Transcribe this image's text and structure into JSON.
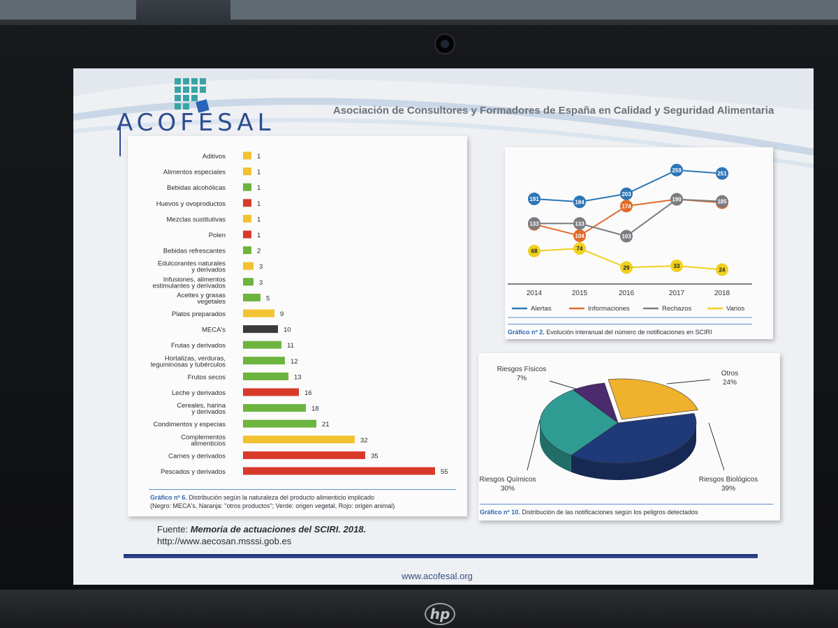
{
  "header": {
    "logo_text": "ACOFESAL",
    "title": "Asociación de Consultores y Formadores de España en Calidad y Seguridad Alimentaria"
  },
  "source": {
    "prefix": "Fuente:",
    "title": "Memoria de actuaciones del SCIRI. 2018.",
    "url": "http://www.aecosan.msssi.gob.es"
  },
  "footer": {
    "url": "www.acofesal.org"
  },
  "laptop": {
    "brand": "hp"
  },
  "colors": {
    "black": "#3a3a3c",
    "orange": "#f2c230",
    "green": "#6db33f",
    "red": "#d83a2a",
    "alertas": "#2e75b6",
    "informaciones": "#e06c2a",
    "rechazos": "#7a7c80",
    "varios": "#f0d020",
    "pie_otros": "#f0b22c",
    "pie_biologicos": "#1f3a78",
    "pie_quimicos": "#2f9c94",
    "pie_fisicos": "#4b2a6e"
  },
  "chart_data": [
    {
      "type": "bar",
      "orientation": "horizontal",
      "caption_label": "Gráfico nº 6.",
      "caption_text": "Distribución según la naturaleza del producto alimenticio implicado",
      "caption_note": "(Negro: MECA's, Naranja: \"otros productos\"; Verde: origen vegetal, Rojo: origen animal)",
      "categories": [
        "Aditivos",
        "Alimentos especiales",
        "Bebidas alcohólicas",
        "Huevos y ovoproductos",
        "Mezclas  sustitutivas",
        "Polen",
        "Bebidas refrescantes",
        "Edulcorantes naturales\ny derivados",
        "Infusiones, alimentos\nestimulantes y derivados",
        "Aceites y grasas\nvegetales",
        "Platos preparados",
        "MECA's",
        "Frutas y derivados",
        "Hortalizas, verduras,\nleguminosas y tubérculos",
        "Frutos secos",
        "Leche y derivados",
        "Cereales, harina\ny derivados",
        "Condimentos y especias",
        "Complementos\nalimenticios",
        "Carnes y derivados",
        "Pescados y derivados"
      ],
      "values": [
        1,
        1,
        1,
        1,
        1,
        1,
        2,
        3,
        3,
        5,
        9,
        10,
        11,
        12,
        13,
        16,
        18,
        21,
        32,
        35,
        55
      ],
      "bar_colors": [
        "orange",
        "orange",
        "green",
        "red",
        "orange",
        "red",
        "green",
        "orange",
        "green",
        "green",
        "orange",
        "black",
        "green",
        "green",
        "green",
        "red",
        "green",
        "green",
        "orange",
        "red",
        "red"
      ],
      "xlim": [
        0,
        55
      ]
    },
    {
      "type": "line",
      "caption_label": "Gráfico nº 2.",
      "caption_text": "Evolución interanual del número de notificaciones en SCIRI",
      "x": [
        "2014",
        "2015",
        "2016",
        "2017",
        "2018"
      ],
      "series": [
        {
          "name": "Alertas",
          "color_key": "alertas",
          "values": [
            191,
            184,
            203,
            259,
            251
          ]
        },
        {
          "name": "Informaciones",
          "color_key": "informaciones",
          "values": [
            131,
            104,
            174,
            190,
            182
          ]
        },
        {
          "name": "Rechazos",
          "color_key": "rechazos",
          "values": [
            133,
            133,
            103,
            190,
            185
          ]
        },
        {
          "name": "Varios",
          "color_key": "varios",
          "values": [
            68,
            74,
            29,
            33,
            24
          ]
        }
      ],
      "ylim": [
        0,
        280
      ],
      "legend": "bottom"
    },
    {
      "type": "pie",
      "caption_label": "Gráfico nº 10.",
      "caption_text": "Distribución de las notificaciones según los peligros detectados",
      "slices": [
        {
          "label": "Otros",
          "value": 24,
          "display": "24%",
          "color_key": "pie_otros"
        },
        {
          "label": "Riesgos Biológicos",
          "value": 39,
          "display": "39%",
          "color_key": "pie_biologicos"
        },
        {
          "label": "Riesgos Químicos",
          "value": 30,
          "display": "30%",
          "color_key": "pie_quimicos"
        },
        {
          "label": "Riesgos Físicos",
          "value": 7,
          "display": "7%",
          "color_key": "pie_fisicos"
        }
      ]
    }
  ]
}
